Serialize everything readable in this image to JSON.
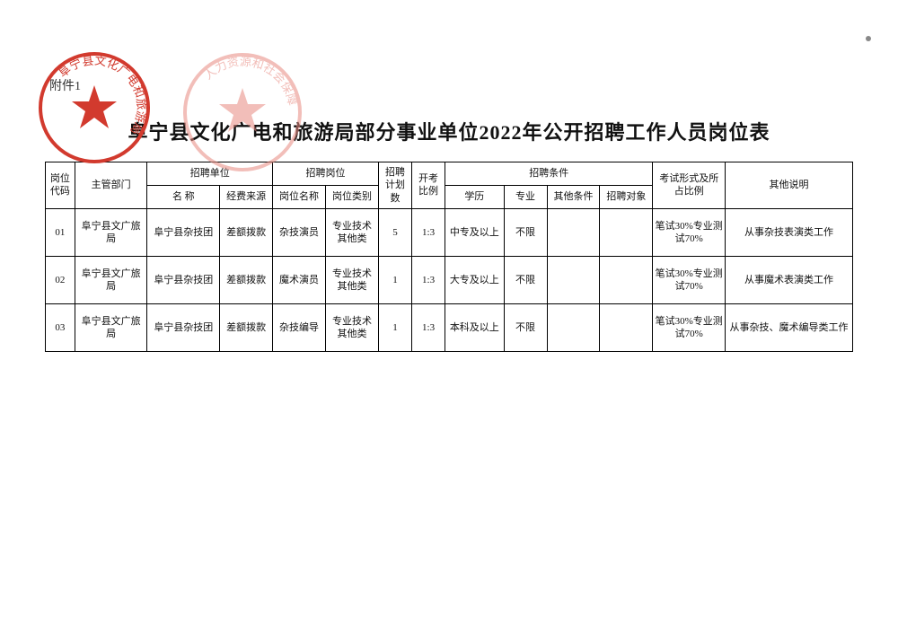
{
  "attachment_label": "附件1",
  "title": "阜宁县文化广电和旅游局部分事业单位2022年公开招聘工作人员岗位表",
  "stamps": {
    "stamp1_text": "阜宁县文化广电和旅游局",
    "stamp2_text": "人力资源和社会保障",
    "color": "#d23a2e",
    "color_light": "#e88a80"
  },
  "header": {
    "code": "岗位代码",
    "dept": "主管部门",
    "unit_group": "招聘单位",
    "unit_name": "名  称",
    "unit_fund": "经费来源",
    "post_group": "招聘岗位",
    "post_name": "岗位名称",
    "post_type": "岗位类别",
    "plan": "招聘计划数",
    "ratio": "开考比例",
    "cond_group": "招聘条件",
    "cond_edu": "学历",
    "cond_major": "专业",
    "cond_other": "其他条件",
    "cond_target": "招聘对象",
    "exam": "考试形式及所占比例",
    "remark": "其他说明"
  },
  "rows": [
    {
      "code": "01",
      "dept": "阜宁县文广旅局",
      "unit_name": "阜宁县杂技团",
      "unit_fund": "差额拨款",
      "post_name": "杂技演员",
      "post_type": "专业技术其他类",
      "plan": "5",
      "ratio": "1:3",
      "edu": "中专及以上",
      "major": "不限",
      "other": "",
      "target": "",
      "exam": "笔试30%专业测试70%",
      "remark": "从事杂技表演类工作"
    },
    {
      "code": "02",
      "dept": "阜宁县文广旅局",
      "unit_name": "阜宁县杂技团",
      "unit_fund": "差额拨款",
      "post_name": "魔术演员",
      "post_type": "专业技术其他类",
      "plan": "1",
      "ratio": "1:3",
      "edu": "大专及以上",
      "major": "不限",
      "other": "",
      "target": "",
      "exam": "笔试30%专业测试70%",
      "remark": "从事魔术表演类工作"
    },
    {
      "code": "03",
      "dept": "阜宁县文广旅局",
      "unit_name": "阜宁县杂技团",
      "unit_fund": "差额拨款",
      "post_name": "杂技编导",
      "post_type": "专业技术其他类",
      "plan": "1",
      "ratio": "1:3",
      "edu": "本科及以上",
      "major": "不限",
      "other": "",
      "target": "",
      "exam": "笔试30%专业测试70%",
      "remark": "从事杂技、魔术编导类工作"
    }
  ]
}
